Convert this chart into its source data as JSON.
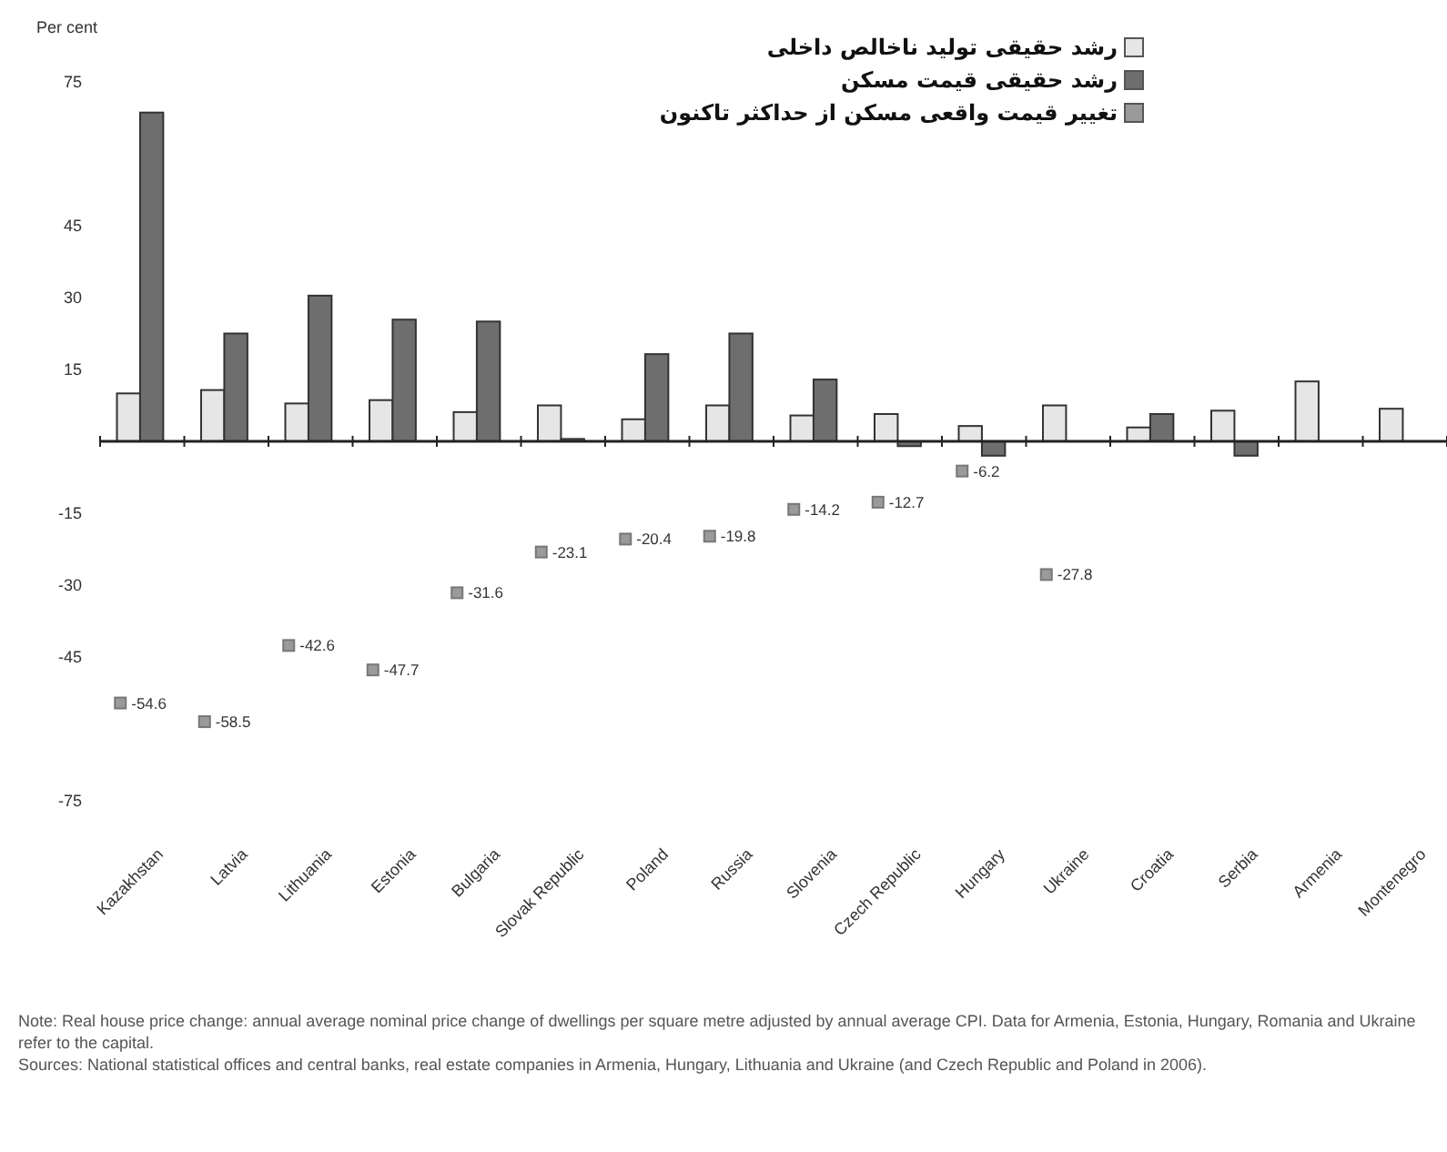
{
  "chart_data": {
    "type": "bar",
    "ylabel": "Per cent",
    "categories": [
      "Kazakhstan",
      "Latvia",
      "Lithuania",
      "Estonia",
      "Bulgaria",
      "Slovak Republic",
      "Poland",
      "Russia",
      "Slovenia",
      "Czech Republic",
      "Hungary",
      "Ukraine",
      "Croatia",
      "Serbia",
      "Armenia",
      "Montenegro"
    ],
    "series": [
      {
        "name": "رشد حقیقی تولید ناخالص داخلی",
        "color": "#e6e6e6",
        "values": [
          10,
          10.7,
          7.9,
          8.6,
          6.1,
          7.5,
          4.6,
          7.5,
          5.4,
          5.7,
          3.2,
          7.5,
          2.9,
          6.4,
          12.5,
          6.8
        ]
      },
      {
        "name": "رشد حقیقی قیمت مسکن",
        "color": "#6e6e6e",
        "values": [
          68.6,
          22.5,
          30.4,
          25.4,
          25,
          0.5,
          18.2,
          22.5,
          12.9,
          -1,
          -3,
          null,
          5.7,
          -3,
          null,
          null
        ]
      },
      {
        "name": "تغییر قیمت واقعی مسکن از حداکثر تاکنون",
        "color": "#9a9a9a",
        "type": "scatter",
        "marker": "square",
        "values": [
          -54.6,
          -58.5,
          -42.6,
          -47.7,
          -31.6,
          -23.1,
          -20.4,
          -19.8,
          -14.2,
          -12.7,
          -6.2,
          -27.8,
          null,
          null,
          null,
          null
        ],
        "value_labels": [
          "-54.6",
          "-58.5",
          "-42.6",
          "-47.7",
          "-31.6",
          "-23.1",
          "-20.4",
          "-19.8",
          "-14.2",
          "-12.7",
          "-6.2",
          "-27.8",
          null,
          null,
          null,
          null
        ]
      }
    ],
    "ylim": [
      -75,
      75
    ],
    "yticks": [
      -75,
      -45,
      -30,
      -15,
      15,
      30,
      45,
      75
    ],
    "grid": false,
    "legend": "top right",
    "annotations": [
      "Note: Real house price change: annual average nominal price change of dwellings per square metre adjusted by annual average CPI. Data for Armenia, Estonia, Hungary, Romania and Ukraine refer to the capital.",
      "Sources: National statistical offices and central banks, real estate companies in Armenia, Hungary, Lithuania and Ukraine (and Czech Republic and Poland in 2006)."
    ]
  }
}
